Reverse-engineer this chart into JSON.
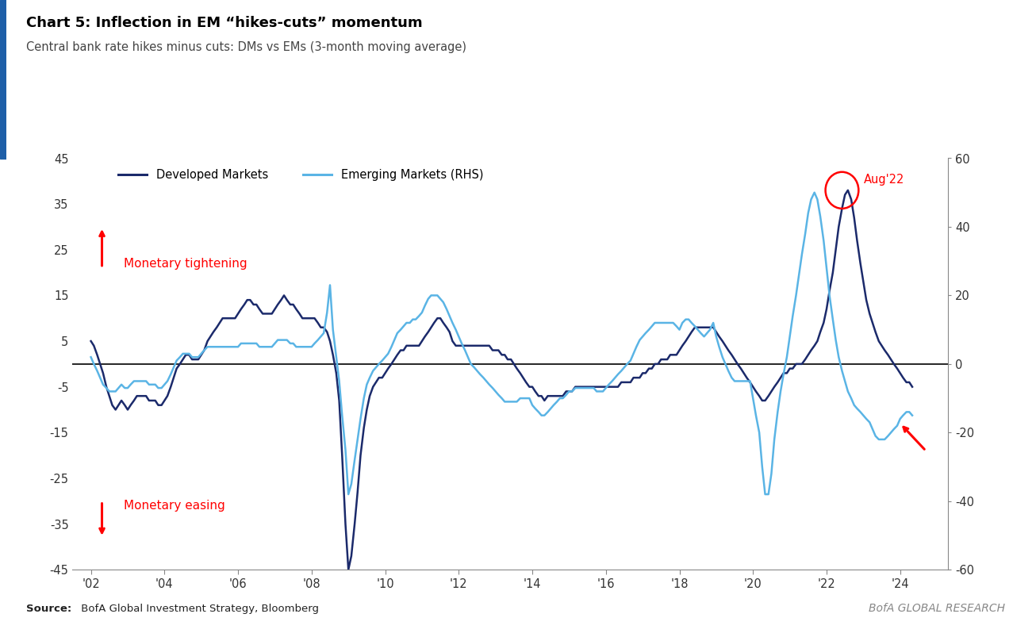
{
  "title": "Chart 5: Inflection in EM “hikes-cuts” momentum",
  "subtitle": "Central bank rate hikes minus cuts: DMs vs EMs (3-month moving average)",
  "source_bold": "Source:",
  "source_rest": " BofA Global Investment Strategy, Bloomberg",
  "branding": "BofA GLOBAL RESEARCH",
  "dm_label": "Developed Markets",
  "em_label": "Emerging Markets (RHS)",
  "dm_color": "#1b2a6b",
  "em_color": "#5ab4e5",
  "background_color": "#ffffff",
  "ylim_left": [
    -45,
    45
  ],
  "ylim_right": [
    -60,
    60
  ],
  "yticks_left": [
    -45,
    -35,
    -25,
    -15,
    -5,
    5,
    15,
    25,
    35,
    45
  ],
  "yticks_right": [
    -60,
    -40,
    -20,
    0,
    20,
    40,
    60
  ],
  "xticks": [
    2002,
    2004,
    2006,
    2008,
    2010,
    2012,
    2014,
    2016,
    2018,
    2020,
    2022,
    2024
  ],
  "xtick_labels": [
    "'02",
    "'04",
    "'06",
    "'08",
    "'10",
    "'12",
    "'14",
    "'16",
    "'18",
    "'20",
    "'22",
    "'24"
  ],
  "monetary_tightening_text": "Monetary tightening",
  "monetary_easing_text": "Monetary easing",
  "annotation_aug22": "Aug'22",
  "title_bar_color": "#1e5fa8",
  "dm_data_x": [
    2002.0,
    2002.08,
    2002.17,
    2002.25,
    2002.33,
    2002.42,
    2002.5,
    2002.58,
    2002.67,
    2002.75,
    2002.83,
    2002.92,
    2003.0,
    2003.08,
    2003.17,
    2003.25,
    2003.33,
    2003.42,
    2003.5,
    2003.58,
    2003.67,
    2003.75,
    2003.83,
    2003.92,
    2004.0,
    2004.08,
    2004.17,
    2004.25,
    2004.33,
    2004.42,
    2004.5,
    2004.58,
    2004.67,
    2004.75,
    2004.83,
    2004.92,
    2005.0,
    2005.08,
    2005.17,
    2005.25,
    2005.33,
    2005.42,
    2005.5,
    2005.58,
    2005.67,
    2005.75,
    2005.83,
    2005.92,
    2006.0,
    2006.08,
    2006.17,
    2006.25,
    2006.33,
    2006.42,
    2006.5,
    2006.58,
    2006.67,
    2006.75,
    2006.83,
    2006.92,
    2007.0,
    2007.08,
    2007.17,
    2007.25,
    2007.33,
    2007.42,
    2007.5,
    2007.58,
    2007.67,
    2007.75,
    2007.83,
    2007.92,
    2008.0,
    2008.08,
    2008.17,
    2008.25,
    2008.33,
    2008.42,
    2008.5,
    2008.58,
    2008.67,
    2008.75,
    2008.83,
    2008.92,
    2009.0,
    2009.08,
    2009.17,
    2009.25,
    2009.33,
    2009.42,
    2009.5,
    2009.58,
    2009.67,
    2009.75,
    2009.83,
    2009.92,
    2010.0,
    2010.08,
    2010.17,
    2010.25,
    2010.33,
    2010.42,
    2010.5,
    2010.58,
    2010.67,
    2010.75,
    2010.83,
    2010.92,
    2011.0,
    2011.08,
    2011.17,
    2011.25,
    2011.33,
    2011.42,
    2011.5,
    2011.58,
    2011.67,
    2011.75,
    2011.83,
    2011.92,
    2012.0,
    2012.08,
    2012.17,
    2012.25,
    2012.33,
    2012.42,
    2012.5,
    2012.58,
    2012.67,
    2012.75,
    2012.83,
    2012.92,
    2013.0,
    2013.08,
    2013.17,
    2013.25,
    2013.33,
    2013.42,
    2013.5,
    2013.58,
    2013.67,
    2013.75,
    2013.83,
    2013.92,
    2014.0,
    2014.08,
    2014.17,
    2014.25,
    2014.33,
    2014.42,
    2014.5,
    2014.58,
    2014.67,
    2014.75,
    2014.83,
    2014.92,
    2015.0,
    2015.08,
    2015.17,
    2015.25,
    2015.33,
    2015.42,
    2015.5,
    2015.58,
    2015.67,
    2015.75,
    2015.83,
    2015.92,
    2016.0,
    2016.08,
    2016.17,
    2016.25,
    2016.33,
    2016.42,
    2016.5,
    2016.58,
    2016.67,
    2016.75,
    2016.83,
    2016.92,
    2017.0,
    2017.08,
    2017.17,
    2017.25,
    2017.33,
    2017.42,
    2017.5,
    2017.58,
    2017.67,
    2017.75,
    2017.83,
    2017.92,
    2018.0,
    2018.08,
    2018.17,
    2018.25,
    2018.33,
    2018.42,
    2018.5,
    2018.58,
    2018.67,
    2018.75,
    2018.83,
    2018.92,
    2019.0,
    2019.08,
    2019.17,
    2019.25,
    2019.33,
    2019.42,
    2019.5,
    2019.58,
    2019.67,
    2019.75,
    2019.83,
    2019.92,
    2020.0,
    2020.08,
    2020.17,
    2020.25,
    2020.33,
    2020.42,
    2020.5,
    2020.58,
    2020.67,
    2020.75,
    2020.83,
    2020.92,
    2021.0,
    2021.08,
    2021.17,
    2021.25,
    2021.33,
    2021.42,
    2021.5,
    2021.58,
    2021.67,
    2021.75,
    2021.83,
    2021.92,
    2022.0,
    2022.08,
    2022.17,
    2022.25,
    2022.33,
    2022.42,
    2022.5,
    2022.58,
    2022.67,
    2022.75,
    2022.83,
    2022.92,
    2023.0,
    2023.08,
    2023.17,
    2023.25,
    2023.33,
    2023.42,
    2023.5,
    2023.58,
    2023.67,
    2023.75,
    2023.83,
    2023.92,
    2024.0,
    2024.08,
    2024.17,
    2024.25,
    2024.33
  ],
  "dm_data_y": [
    5,
    4,
    2,
    0,
    -2,
    -5,
    -7,
    -9,
    -10,
    -9,
    -8,
    -9,
    -10,
    -9,
    -8,
    -7,
    -7,
    -7,
    -7,
    -8,
    -8,
    -8,
    -9,
    -9,
    -8,
    -7,
    -5,
    -3,
    -1,
    0,
    1,
    2,
    2,
    1,
    1,
    1,
    2,
    3,
    5,
    6,
    7,
    8,
    9,
    10,
    10,
    10,
    10,
    10,
    11,
    12,
    13,
    14,
    14,
    13,
    13,
    12,
    11,
    11,
    11,
    11,
    12,
    13,
    14,
    15,
    14,
    13,
    13,
    12,
    11,
    10,
    10,
    10,
    10,
    10,
    9,
    8,
    8,
    7,
    5,
    2,
    -2,
    -8,
    -20,
    -35,
    -45,
    -42,
    -35,
    -28,
    -20,
    -14,
    -10,
    -7,
    -5,
    -4,
    -3,
    -3,
    -2,
    -1,
    0,
    1,
    2,
    3,
    3,
    4,
    4,
    4,
    4,
    4,
    5,
    6,
    7,
    8,
    9,
    10,
    10,
    9,
    8,
    7,
    5,
    4,
    4,
    4,
    4,
    4,
    4,
    4,
    4,
    4,
    4,
    4,
    4,
    3,
    3,
    3,
    2,
    2,
    1,
    1,
    0,
    -1,
    -2,
    -3,
    -4,
    -5,
    -5,
    -6,
    -7,
    -7,
    -8,
    -7,
    -7,
    -7,
    -7,
    -7,
    -7,
    -6,
    -6,
    -6,
    -5,
    -5,
    -5,
    -5,
    -5,
    -5,
    -5,
    -5,
    -5,
    -5,
    -5,
    -5,
    -5,
    -5,
    -5,
    -4,
    -4,
    -4,
    -4,
    -3,
    -3,
    -3,
    -2,
    -2,
    -1,
    -1,
    0,
    0,
    1,
    1,
    1,
    2,
    2,
    2,
    3,
    4,
    5,
    6,
    7,
    8,
    8,
    8,
    8,
    8,
    8,
    8,
    7,
    6,
    5,
    4,
    3,
    2,
    1,
    0,
    -1,
    -2,
    -3,
    -4,
    -5,
    -6,
    -7,
    -8,
    -8,
    -7,
    -6,
    -5,
    -4,
    -3,
    -2,
    -2,
    -1,
    -1,
    0,
    0,
    0,
    1,
    2,
    3,
    4,
    5,
    7,
    9,
    12,
    16,
    20,
    25,
    30,
    34,
    37,
    38,
    36,
    32,
    27,
    22,
    18,
    14,
    11,
    9,
    7,
    5,
    4,
    3,
    2,
    1,
    0,
    -1,
    -2,
    -3,
    -4,
    -4,
    -5
  ],
  "em_data_y_rhs": [
    2,
    0,
    -2,
    -4,
    -6,
    -7,
    -8,
    -8,
    -8,
    -7,
    -6,
    -7,
    -7,
    -6,
    -5,
    -5,
    -5,
    -5,
    -5,
    -6,
    -6,
    -6,
    -7,
    -7,
    -6,
    -5,
    -3,
    -1,
    1,
    2,
    3,
    3,
    3,
    2,
    2,
    2,
    3,
    4,
    5,
    5,
    5,
    5,
    5,
    5,
    5,
    5,
    5,
    5,
    5,
    6,
    6,
    6,
    6,
    6,
    6,
    5,
    5,
    5,
    5,
    5,
    6,
    7,
    7,
    7,
    7,
    6,
    6,
    5,
    5,
    5,
    5,
    5,
    5,
    6,
    7,
    8,
    9,
    15,
    23,
    10,
    2,
    -5,
    -15,
    -25,
    -38,
    -35,
    -28,
    -22,
    -16,
    -10,
    -6,
    -4,
    -2,
    -1,
    0,
    1,
    2,
    3,
    5,
    7,
    9,
    10,
    11,
    12,
    12,
    13,
    13,
    14,
    15,
    17,
    19,
    20,
    20,
    20,
    19,
    18,
    16,
    14,
    12,
    10,
    8,
    6,
    4,
    2,
    0,
    -1,
    -2,
    -3,
    -4,
    -5,
    -6,
    -7,
    -8,
    -9,
    -10,
    -11,
    -11,
    -11,
    -11,
    -11,
    -10,
    -10,
    -10,
    -10,
    -12,
    -13,
    -14,
    -15,
    -15,
    -14,
    -13,
    -12,
    -11,
    -10,
    -10,
    -9,
    -8,
    -8,
    -7,
    -7,
    -7,
    -7,
    -7,
    -7,
    -7,
    -8,
    -8,
    -8,
    -7,
    -6,
    -5,
    -4,
    -3,
    -2,
    -1,
    0,
    1,
    3,
    5,
    7,
    8,
    9,
    10,
    11,
    12,
    12,
    12,
    12,
    12,
    12,
    12,
    11,
    10,
    12,
    13,
    13,
    12,
    11,
    10,
    9,
    8,
    9,
    10,
    12,
    8,
    5,
    2,
    0,
    -2,
    -4,
    -5,
    -5,
    -5,
    -5,
    -5,
    -5,
    -10,
    -15,
    -20,
    -30,
    -38,
    -38,
    -32,
    -22,
    -14,
    -8,
    -3,
    2,
    8,
    14,
    20,
    26,
    32,
    38,
    44,
    48,
    50,
    48,
    43,
    36,
    28,
    20,
    13,
    7,
    2,
    -2,
    -5,
    -8,
    -10,
    -12,
    -13,
    -14,
    -15,
    -16,
    -17,
    -19,
    -21,
    -22,
    -22,
    -22,
    -21,
    -20,
    -19,
    -18,
    -16,
    -15,
    -14,
    -14,
    -15
  ]
}
